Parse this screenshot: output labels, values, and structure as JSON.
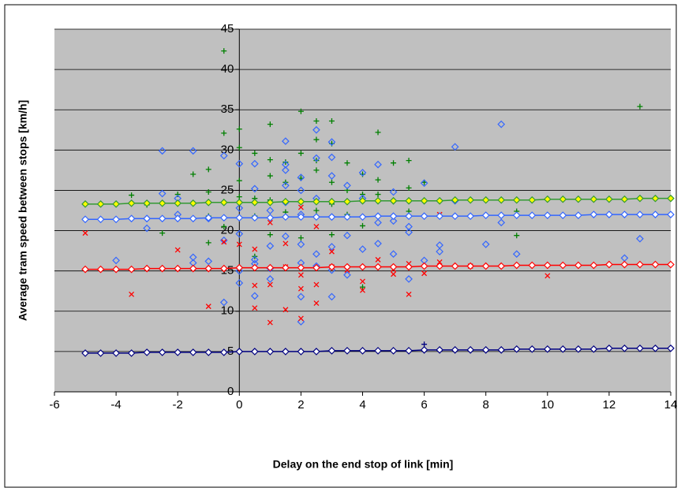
{
  "chart_data": {
    "type": "scatter",
    "x_label": "Delay on the end stop of link [min]",
    "y_label": "Average tram speed between stops [km/h]",
    "xlim": [
      -6,
      14
    ],
    "xticks": [
      -6,
      -4,
      -2,
      0,
      2,
      4,
      6,
      8,
      10,
      12,
      14
    ],
    "ylim": [
      0,
      45
    ],
    "yticks": [
      0,
      5,
      10,
      15,
      20,
      25,
      30,
      35,
      40,
      45
    ],
    "grid": true,
    "background": "#c0c0c0",
    "series": [
      {
        "mode": "markers",
        "marker": "plus",
        "color": "#008000",
        "x": [
          -0.5,
          13,
          2,
          1,
          0,
          2.5,
          3,
          4.5,
          -0.5,
          2.5,
          0,
          3,
          -1,
          0.5,
          1,
          1.5,
          2,
          2.5,
          3.5,
          4,
          5,
          5.5,
          -1.5,
          0,
          1,
          1.5,
          2,
          2.5,
          3,
          4.5,
          3.5,
          -2,
          -1,
          0,
          0.5,
          1,
          2,
          3,
          4,
          5,
          5.5,
          -3,
          -2.5,
          -1,
          -0.5,
          0.5,
          1.5,
          2.5,
          3.5,
          4,
          4.5,
          5.5,
          9,
          9,
          -1,
          1,
          2,
          3,
          4,
          0.5,
          -3.5,
          -2,
          6
        ],
        "values": [
          42.3,
          35.4,
          34.8,
          33.2,
          32.6,
          33.6,
          33.6,
          32.2,
          32.1,
          31.3,
          30.3,
          30.8,
          27.6,
          29.6,
          28.8,
          28.5,
          29.6,
          28.7,
          28.4,
          27.0,
          28.4,
          28.7,
          27.0,
          26.2,
          26.8,
          26.0,
          26.5,
          27.5,
          26.0,
          26.3,
          25.0,
          24.5,
          24.8,
          24.2,
          24.0,
          23.8,
          23.5,
          23.3,
          24.5,
          23.6,
          25.3,
          23.2,
          19.7,
          21.8,
          20.5,
          21.8,
          22.3,
          22.5,
          22.0,
          20.6,
          24.5,
          22.4,
          19.4,
          22.4,
          18.5,
          19.5,
          19.1,
          19.5,
          13.0,
          16.8,
          24.4,
          21.5,
          26.0
        ]
      },
      {
        "mode": "markers",
        "marker": "diamond",
        "color": "#3366ff",
        "x": [
          8.5,
          1.5,
          2.5,
          3,
          7,
          -2.5,
          -1.5,
          -0.5,
          0.5,
          1.5,
          2.5,
          3,
          4.5,
          0,
          1.5,
          2,
          3,
          4,
          6,
          -2.5,
          -2,
          0.5,
          1.5,
          2,
          2.5,
          3.5,
          4,
          5,
          -3,
          -2,
          -1,
          0,
          1,
          1.5,
          2,
          3,
          4.5,
          5,
          5.5,
          7,
          8.5,
          -4,
          -3,
          -1.5,
          -1,
          -0.5,
          0,
          0.5,
          1,
          1.5,
          2,
          2.5,
          3,
          3.5,
          4,
          4.5,
          5,
          5.5,
          6,
          6.5,
          8,
          9,
          12.5,
          13,
          -1.5,
          0,
          0.5,
          1,
          2,
          2.5,
          3,
          3.5,
          5.5,
          0,
          0.5,
          1,
          2,
          2,
          3,
          -0.5,
          6.5
        ],
        "values": [
          33.2,
          31.1,
          32.5,
          31.0,
          30.4,
          29.9,
          29.9,
          29.3,
          28.3,
          28.2,
          29.0,
          29.1,
          28.2,
          28.3,
          27.5,
          26.6,
          26.8,
          27.2,
          25.9,
          24.6,
          24.0,
          25.2,
          25.6,
          25.0,
          24.0,
          25.6,
          24.0,
          24.8,
          21.5,
          22.0,
          21.5,
          22.8,
          22.5,
          23.5,
          22.0,
          21.7,
          21.0,
          21.2,
          20.5,
          23.7,
          21.0,
          16.3,
          20.3,
          16.7,
          16.2,
          18.8,
          19.6,
          16.4,
          18.1,
          19.3,
          18.3,
          17.1,
          18.0,
          19.4,
          17.7,
          18.4,
          17.1,
          19.8,
          16.3,
          18.2,
          18.3,
          17.1,
          16.6,
          19.0,
          16.0,
          15.0,
          15.9,
          15.3,
          16.0,
          15.6,
          15.1,
          14.5,
          14.0,
          13.5,
          11.9,
          14.0,
          11.8,
          8.7,
          11.8,
          11.1,
          17.4
        ]
      },
      {
        "mode": "markers",
        "marker": "cross",
        "color": "#ff0000",
        "x": [
          -5,
          -3.5,
          -2,
          -1,
          -0.5,
          0,
          0.5,
          0.5,
          1,
          1,
          1,
          1.5,
          1.5,
          1.5,
          2,
          2,
          2,
          2.5,
          2.5,
          2.5,
          3,
          3,
          3.5,
          4,
          4,
          4.5,
          5,
          5,
          5.5,
          5.5,
          6,
          6.5,
          6.5,
          7.5,
          10,
          0.5,
          2
        ],
        "values": [
          19.7,
          12.1,
          17.6,
          10.6,
          18.6,
          18.3,
          13.2,
          10.4,
          21.0,
          13.3,
          8.6,
          18.4,
          15.5,
          10.2,
          22.9,
          12.8,
          9.1,
          20.5,
          13.3,
          11.0,
          15.5,
          17.4,
          15.1,
          12.6,
          13.7,
          16.4,
          15.2,
          14.6,
          12.1,
          15.9,
          14.7,
          22.0,
          16.1,
          15.6,
          14.4,
          17.7,
          14.5
        ]
      },
      {
        "mode": "markers",
        "marker": "plus",
        "color": "#000080",
        "x": [
          6
        ],
        "values": [
          5.9
        ]
      },
      {
        "mode": "lines+markers",
        "marker": "diamond",
        "color": "#339933",
        "marker_fill": "#ffff00",
        "x": [
          -5,
          -4.5,
          -4,
          -3.5,
          -3,
          -2.5,
          -2,
          -1.5,
          -1,
          -0.5,
          0,
          0.5,
          1,
          1.5,
          2,
          2.5,
          3,
          3.5,
          4,
          4.5,
          5,
          5.5,
          6,
          6.5,
          7,
          7.5,
          8,
          8.5,
          9,
          9.5,
          10,
          10.5,
          11,
          11.5,
          12,
          12.5,
          13,
          13.5,
          14
        ],
        "values": [
          23.3,
          23.3,
          23.3,
          23.4,
          23.4,
          23.4,
          23.4,
          23.4,
          23.5,
          23.5,
          23.5,
          23.5,
          23.5,
          23.6,
          23.6,
          23.6,
          23.6,
          23.6,
          23.7,
          23.7,
          23.7,
          23.7,
          23.7,
          23.7,
          23.8,
          23.8,
          23.8,
          23.8,
          23.8,
          23.8,
          23.9,
          23.9,
          23.9,
          23.9,
          23.9,
          23.9,
          24.0,
          24.0,
          24.0
        ]
      },
      {
        "mode": "lines+markers",
        "marker": "diamond",
        "color": "#3366ff",
        "marker_fill": "#ffffff",
        "x": [
          -5,
          -4.5,
          -4,
          -3.5,
          -3,
          -2.5,
          -2,
          -1.5,
          -1,
          -0.5,
          0,
          0.5,
          1,
          1.5,
          2,
          2.5,
          3,
          3.5,
          4,
          4.5,
          5,
          5.5,
          6,
          6.5,
          7,
          7.5,
          8,
          8.5,
          9,
          9.5,
          10,
          10.5,
          11,
          11.5,
          12,
          12.5,
          13,
          13.5,
          14
        ],
        "values": [
          21.4,
          21.4,
          21.4,
          21.5,
          21.5,
          21.5,
          21.5,
          21.5,
          21.6,
          21.6,
          21.6,
          21.6,
          21.6,
          21.7,
          21.7,
          21.7,
          21.7,
          21.7,
          21.7,
          21.8,
          21.8,
          21.8,
          21.8,
          21.8,
          21.8,
          21.8,
          21.9,
          21.9,
          21.9,
          21.9,
          21.9,
          21.9,
          21.9,
          22.0,
          22.0,
          22.0,
          22.0,
          22.0,
          22.0
        ]
      },
      {
        "mode": "lines+markers",
        "marker": "diamond",
        "color": "#ff0000",
        "marker_fill": "#ffffff",
        "x": [
          -5,
          -4.5,
          -4,
          -3.5,
          -3,
          -2.5,
          -2,
          -1.5,
          -1,
          -0.5,
          0,
          0.5,
          1,
          1.5,
          2,
          2.5,
          3,
          3.5,
          4,
          4.5,
          5,
          5.5,
          6,
          6.5,
          7,
          7.5,
          8,
          8.5,
          9,
          9.5,
          10,
          10.5,
          11,
          11.5,
          12,
          12.5,
          13,
          13.5,
          14
        ],
        "values": [
          15.2,
          15.2,
          15.2,
          15.2,
          15.3,
          15.3,
          15.3,
          15.3,
          15.3,
          15.3,
          15.4,
          15.4,
          15.4,
          15.4,
          15.4,
          15.4,
          15.5,
          15.5,
          15.5,
          15.5,
          15.5,
          15.5,
          15.6,
          15.6,
          15.6,
          15.6,
          15.6,
          15.6,
          15.7,
          15.7,
          15.7,
          15.7,
          15.7,
          15.7,
          15.8,
          15.8,
          15.8,
          15.8,
          15.8
        ]
      },
      {
        "mode": "lines+markers",
        "marker": "diamond",
        "color": "#000080",
        "marker_fill": "#ffffff",
        "x": [
          -5,
          -4.5,
          -4,
          -3.5,
          -3,
          -2.5,
          -2,
          -1.5,
          -1,
          -0.5,
          0,
          0.5,
          1,
          1.5,
          2,
          2.5,
          3,
          3.5,
          4,
          4.5,
          5,
          5.5,
          6,
          6.5,
          7,
          7.5,
          8,
          8.5,
          9,
          9.5,
          10,
          10.5,
          11,
          11.5,
          12,
          12.5,
          13,
          13.5,
          14
        ],
        "values": [
          4.8,
          4.8,
          4.8,
          4.8,
          4.9,
          4.9,
          4.9,
          4.9,
          4.9,
          4.9,
          5.0,
          5.0,
          5.0,
          5.0,
          5.0,
          5.0,
          5.1,
          5.1,
          5.1,
          5.1,
          5.1,
          5.1,
          5.2,
          5.2,
          5.2,
          5.2,
          5.2,
          5.2,
          5.3,
          5.3,
          5.3,
          5.3,
          5.3,
          5.3,
          5.4,
          5.4,
          5.4,
          5.4,
          5.4
        ]
      }
    ]
  }
}
